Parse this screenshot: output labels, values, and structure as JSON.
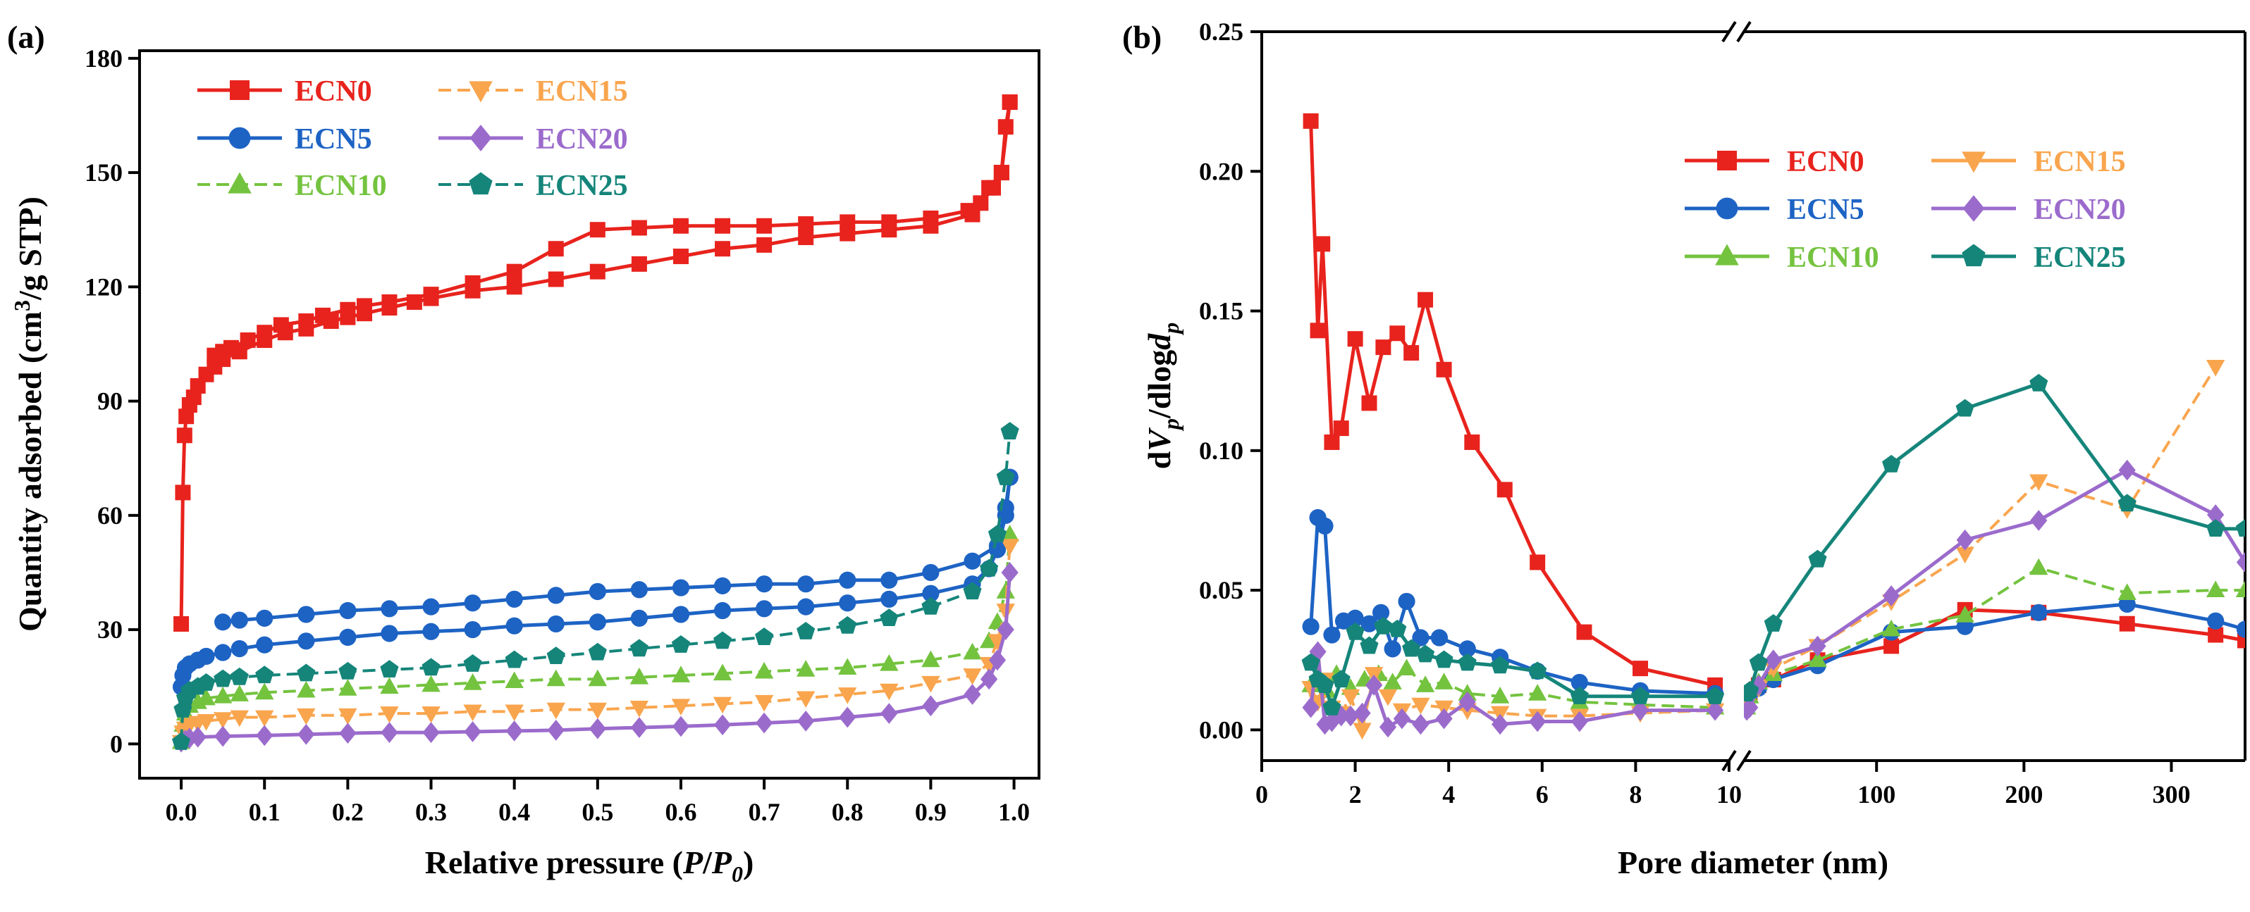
{
  "colors": {
    "ECN0": "#e8231d",
    "ECN5": "#1d63c4",
    "ECN10": "#74c33f",
    "ECN15": "#f9a54e",
    "ECN20": "#9b6bcc",
    "ECN25": "#15857a"
  },
  "markers": {
    "ECN0": "square",
    "ECN5": "circle",
    "ECN10": "triangle-up",
    "ECN15": "triangle-down",
    "ECN20": "diamond",
    "ECN25": "pentagon"
  },
  "chart_data": [
    {
      "panel": "(a)",
      "type": "line",
      "xlabel_parts": [
        "Relative pressure (",
        "P",
        "/",
        "P",
        "0",
        ")"
      ],
      "ylabel_parts": [
        "Quantity adsorbed (cm",
        "3",
        "/g STP)"
      ],
      "xlim": [
        -0.05,
        1.03
      ],
      "ylim": [
        -9,
        182
      ],
      "xticks": [
        0.0,
        0.1,
        0.2,
        0.3,
        0.4,
        0.5,
        0.6,
        0.7,
        0.8,
        0.9,
        1.0
      ],
      "xtick_labels": [
        "0.0",
        "0.1",
        "0.2",
        "0.3",
        "0.4",
        "0.5",
        "0.6",
        "0.7",
        "0.8",
        "0.9",
        "1.0"
      ],
      "yticks": [
        0,
        30,
        60,
        90,
        120,
        150,
        180
      ],
      "ytick_labels": [
        "0",
        "30",
        "60",
        "90",
        "120",
        "150",
        "180"
      ],
      "legend": {
        "position": "top-left",
        "columns": 2,
        "entries": [
          "ECN0",
          "ECN15",
          "ECN5",
          "ECN20",
          "ECN10",
          "ECN25"
        ]
      },
      "series": [
        {
          "name": "ECN0",
          "dashed": false,
          "x": [
            0.0,
            0.002,
            0.004,
            0.006,
            0.01,
            0.015,
            0.02,
            0.03,
            0.04,
            0.05,
            0.07,
            0.1,
            0.125,
            0.15,
            0.18,
            0.2,
            0.22,
            0.25,
            0.28,
            0.3,
            0.35,
            0.4,
            0.45,
            0.5,
            0.55,
            0.6,
            0.65,
            0.7,
            0.75,
            0.8,
            0.85,
            0.9,
            0.95,
            0.97,
            0.985,
            0.995
          ],
          "y": [
            31.5,
            66,
            81,
            86,
            89,
            91,
            94,
            97,
            99,
            101,
            103,
            106,
            108,
            109,
            111,
            112,
            113,
            114.5,
            116,
            117,
            119,
            120,
            122,
            124,
            126,
            128,
            130,
            131,
            133,
            134,
            135,
            136,
            139,
            146,
            150,
            168.5
          ]
        },
        {
          "name": "ECN0-desorption",
          "legend": "ECN0",
          "dashed": false,
          "x": [
            0.995,
            0.99,
            0.985,
            0.975,
            0.96,
            0.945,
            0.9,
            0.85,
            0.8,
            0.75,
            0.7,
            0.65,
            0.6,
            0.55,
            0.5,
            0.45,
            0.4,
            0.35,
            0.3,
            0.25,
            0.22,
            0.2,
            0.17,
            0.15,
            0.12,
            0.1,
            0.08,
            0.06,
            0.05,
            0.04
          ],
          "y": [
            168.5,
            162,
            150,
            146,
            142,
            140,
            138,
            137,
            137,
            136.5,
            136,
            136,
            136,
            135.5,
            135,
            130,
            124,
            121,
            118,
            116,
            115,
            114,
            112.5,
            111,
            110,
            108,
            106,
            104,
            103,
            102
          ]
        },
        {
          "name": "ECN5",
          "dashed": false,
          "x": [
            0.0,
            0.002,
            0.005,
            0.01,
            0.02,
            0.03,
            0.05,
            0.07,
            0.1,
            0.15,
            0.2,
            0.25,
            0.3,
            0.35,
            0.4,
            0.45,
            0.5,
            0.55,
            0.6,
            0.65,
            0.7,
            0.75,
            0.8,
            0.85,
            0.9,
            0.95,
            0.97,
            0.98,
            0.99,
            0.995
          ],
          "y": [
            15,
            18,
            20,
            21,
            22,
            23,
            24,
            25,
            26,
            27,
            28,
            29,
            29.5,
            30,
            31,
            31.5,
            32,
            33,
            34,
            35,
            35.5,
            36,
            37,
            38,
            39.5,
            42,
            46,
            51,
            60,
            70
          ]
        },
        {
          "name": "ECN5-desorption",
          "legend": "ECN5",
          "dashed": false,
          "x": [
            0.995,
            0.99,
            0.98,
            0.95,
            0.9,
            0.85,
            0.8,
            0.75,
            0.7,
            0.65,
            0.6,
            0.55,
            0.5,
            0.45,
            0.4,
            0.35,
            0.3,
            0.25,
            0.2,
            0.15,
            0.1,
            0.07,
            0.05
          ],
          "y": [
            70,
            62,
            52,
            48,
            45,
            43,
            43,
            42,
            42,
            41.5,
            41,
            40.5,
            40,
            39,
            38,
            37,
            36,
            35.5,
            35,
            34,
            33,
            32.5,
            32
          ]
        },
        {
          "name": "ECN10",
          "dashed": true,
          "x": [
            0.0,
            0.002,
            0.005,
            0.01,
            0.02,
            0.03,
            0.05,
            0.07,
            0.1,
            0.15,
            0.2,
            0.25,
            0.3,
            0.35,
            0.4,
            0.45,
            0.5,
            0.55,
            0.6,
            0.65,
            0.7,
            0.75,
            0.8,
            0.85,
            0.9,
            0.95,
            0.97,
            0.98,
            0.99,
            0.995
          ],
          "y": [
            0.5,
            5,
            8,
            10,
            11,
            12,
            12.5,
            13,
            13.5,
            14,
            14.5,
            15,
            15.5,
            16,
            16.5,
            17,
            17,
            17.5,
            18,
            18.5,
            19,
            19.5,
            20,
            21,
            22,
            24,
            27,
            32,
            40,
            55
          ]
        },
        {
          "name": "ECN15",
          "dashed": true,
          "x": [
            0.0,
            0.002,
            0.005,
            0.01,
            0.02,
            0.03,
            0.05,
            0.07,
            0.1,
            0.15,
            0.2,
            0.25,
            0.3,
            0.35,
            0.4,
            0.45,
            0.5,
            0.55,
            0.6,
            0.65,
            0.7,
            0.75,
            0.8,
            0.85,
            0.9,
            0.95,
            0.97,
            0.98,
            0.99,
            0.995
          ],
          "y": [
            0.5,
            3,
            4,
            5,
            5.5,
            6,
            6.5,
            7,
            7,
            7.5,
            7.5,
            8,
            8,
            8.5,
            8.5,
            9,
            9,
            9.5,
            10,
            10.5,
            11,
            12,
            13,
            14,
            16,
            18,
            21,
            27,
            35,
            52
          ]
        },
        {
          "name": "ECN20",
          "dashed": false,
          "x": [
            0.0,
            0.005,
            0.01,
            0.02,
            0.05,
            0.1,
            0.15,
            0.2,
            0.25,
            0.3,
            0.35,
            0.4,
            0.45,
            0.5,
            0.55,
            0.6,
            0.65,
            0.7,
            0.75,
            0.8,
            0.85,
            0.9,
            0.95,
            0.97,
            0.98,
            0.99,
            0.995
          ],
          "y": [
            0.5,
            1,
            1.5,
            1.8,
            2,
            2.2,
            2.5,
            2.8,
            3,
            3,
            3.2,
            3.4,
            3.6,
            4,
            4.3,
            4.6,
            5,
            5.5,
            6,
            7,
            8,
            10,
            13,
            17,
            22,
            30,
            45
          ]
        },
        {
          "name": "ECN25",
          "dashed": true,
          "x": [
            0.0,
            0.002,
            0.005,
            0.01,
            0.02,
            0.03,
            0.05,
            0.07,
            0.1,
            0.15,
            0.2,
            0.25,
            0.3,
            0.35,
            0.4,
            0.45,
            0.5,
            0.55,
            0.6,
            0.65,
            0.7,
            0.75,
            0.8,
            0.85,
            0.9,
            0.95,
            0.97,
            0.98,
            0.99,
            0.995
          ],
          "y": [
            0.5,
            9,
            12,
            14,
            15,
            16,
            17,
            17.5,
            18,
            18.5,
            19,
            19.5,
            20,
            21,
            22,
            23,
            24,
            25,
            26,
            27,
            28,
            29.5,
            31,
            33,
            36,
            40,
            46,
            55,
            70,
            82
          ]
        }
      ]
    },
    {
      "panel": "(b)",
      "type": "line",
      "xlabel": "Pore diameter (nm)",
      "ylabel_parts": [
        "d",
        "V",
        "p",
        "/dlog",
        "d",
        "p"
      ],
      "ylim": [
        -0.011,
        0.25
      ],
      "yticks": [
        0.0,
        0.05,
        0.1,
        0.15,
        0.2,
        0.25
      ],
      "ytick_labels": [
        "0.00",
        "0.05",
        "0.10",
        "0.15",
        "0.20",
        "0.25"
      ],
      "x_segments": [
        {
          "xlim": [
            0,
            10
          ],
          "xticks": [
            0,
            2,
            4,
            6,
            8,
            10
          ],
          "xtick_labels": [
            "0",
            "2",
            "4",
            "6",
            "8",
            "10"
          ]
        },
        {
          "xlim": [
            10,
            350
          ],
          "xticks": [
            100,
            200,
            300
          ],
          "xtick_labels": [
            "100",
            "200",
            "300"
          ]
        }
      ],
      "axis_break": true,
      "legend": {
        "position": "top-right",
        "columns": 2,
        "entries": [
          "ECN0",
          "ECN15",
          "ECN5",
          "ECN20",
          "ECN10",
          "ECN25"
        ]
      },
      "series": [
        {
          "name": "ECN0",
          "dashed": false,
          "x": [
            1.05,
            1.2,
            1.3,
            1.5,
            1.7,
            2.0,
            2.3,
            2.6,
            2.9,
            3.2,
            3.5,
            3.9,
            4.5,
            5.2,
            5.9,
            6.9,
            8.1,
            9.7,
            12,
            14,
            20,
            30,
            60,
            110,
            160,
            210,
            270,
            330,
            350
          ],
          "y": [
            0.218,
            0.143,
            0.174,
            0.103,
            0.108,
            0.14,
            0.117,
            0.137,
            0.142,
            0.135,
            0.154,
            0.129,
            0.103,
            0.086,
            0.06,
            0.035,
            0.022,
            0.016,
            0.013,
            0.013,
            0.016,
            0.018,
            0.025,
            0.03,
            0.043,
            0.042,
            0.038,
            0.034,
            0.032
          ]
        },
        {
          "name": "ECN5",
          "dashed": false,
          "x": [
            1.05,
            1.2,
            1.35,
            1.5,
            1.75,
            2.0,
            2.3,
            2.55,
            2.8,
            3.1,
            3.4,
            3.8,
            4.4,
            5.1,
            5.9,
            6.8,
            8.1,
            9.7,
            12,
            14,
            20,
            30,
            60,
            110,
            160,
            210,
            270,
            330,
            350
          ],
          "y": [
            0.037,
            0.076,
            0.073,
            0.034,
            0.039,
            0.04,
            0.038,
            0.042,
            0.029,
            0.046,
            0.033,
            0.033,
            0.029,
            0.026,
            0.021,
            0.017,
            0.014,
            0.013,
            0.012,
            0.013,
            0.015,
            0.018,
            0.023,
            0.035,
            0.037,
            0.042,
            0.045,
            0.039,
            0.036
          ]
        },
        {
          "name": "ECN10",
          "dashed": true,
          "x": [
            1.05,
            1.2,
            1.4,
            1.6,
            1.9,
            2.2,
            2.5,
            2.8,
            3.1,
            3.5,
            3.9,
            4.4,
            5.1,
            5.9,
            6.8,
            8.1,
            9.7,
            12,
            14,
            20,
            30,
            60,
            110,
            160,
            210,
            270,
            330,
            350
          ],
          "y": [
            0.016,
            0.019,
            0.014,
            0.02,
            0.015,
            0.018,
            0.02,
            0.017,
            0.022,
            0.016,
            0.017,
            0.013,
            0.012,
            0.013,
            0.01,
            0.009,
            0.008,
            0.008,
            0.012,
            0.017,
            0.02,
            0.025,
            0.036,
            0.041,
            0.058,
            0.049,
            0.05,
            0.05
          ]
        },
        {
          "name": "ECN15",
          "dashed": true,
          "x": [
            1.05,
            1.2,
            1.35,
            1.5,
            1.7,
            1.9,
            2.15,
            2.4,
            2.7,
            3.0,
            3.4,
            3.9,
            4.4,
            5.1,
            5.9,
            6.8,
            8.1,
            9.7,
            12,
            14,
            20,
            30,
            60,
            110,
            160,
            210,
            270,
            330
          ],
          "y": [
            0.015,
            0.01,
            0.018,
            0.008,
            0.006,
            0.012,
            0.0,
            0.02,
            0.012,
            0.007,
            0.009,
            0.008,
            0.007,
            0.006,
            0.005,
            0.005,
            0.006,
            0.007,
            0.009,
            0.012,
            0.015,
            0.022,
            0.03,
            0.046,
            0.063,
            0.089,
            0.079,
            0.13
          ]
        },
        {
          "name": "ECN20",
          "dashed": false,
          "x": [
            1.05,
            1.2,
            1.35,
            1.5,
            1.7,
            1.9,
            2.15,
            2.4,
            2.7,
            3.0,
            3.4,
            3.9,
            4.4,
            5.1,
            5.9,
            6.8,
            8.1,
            9.7,
            12,
            14,
            20,
            30,
            60,
            110,
            160,
            210,
            270,
            330,
            350
          ],
          "y": [
            0.008,
            0.028,
            0.002,
            0.003,
            0.005,
            0.005,
            0.006,
            0.016,
            0.001,
            0.004,
            0.002,
            0.004,
            0.01,
            0.002,
            0.003,
            0.003,
            0.007,
            0.007,
            0.007,
            0.008,
            0.016,
            0.025,
            0.03,
            0.048,
            0.068,
            0.075,
            0.093,
            0.077,
            0.06
          ]
        },
        {
          "name": "ECN25",
          "dashed": false,
          "x": [
            1.05,
            1.2,
            1.35,
            1.5,
            1.7,
            2.0,
            2.3,
            2.6,
            2.9,
            3.2,
            3.5,
            3.9,
            4.4,
            5.1,
            5.9,
            6.8,
            8.1,
            9.7,
            12,
            14,
            20,
            30,
            60,
            110,
            160,
            210,
            270,
            330,
            350
          ],
          "y": [
            0.024,
            0.018,
            0.016,
            0.008,
            0.018,
            0.035,
            0.03,
            0.037,
            0.036,
            0.029,
            0.027,
            0.025,
            0.024,
            0.023,
            0.021,
            0.012,
            0.012,
            0.012,
            0.013,
            0.014,
            0.024,
            0.038,
            0.061,
            0.095,
            0.115,
            0.124,
            0.081,
            0.072,
            0.072
          ]
        }
      ]
    }
  ]
}
